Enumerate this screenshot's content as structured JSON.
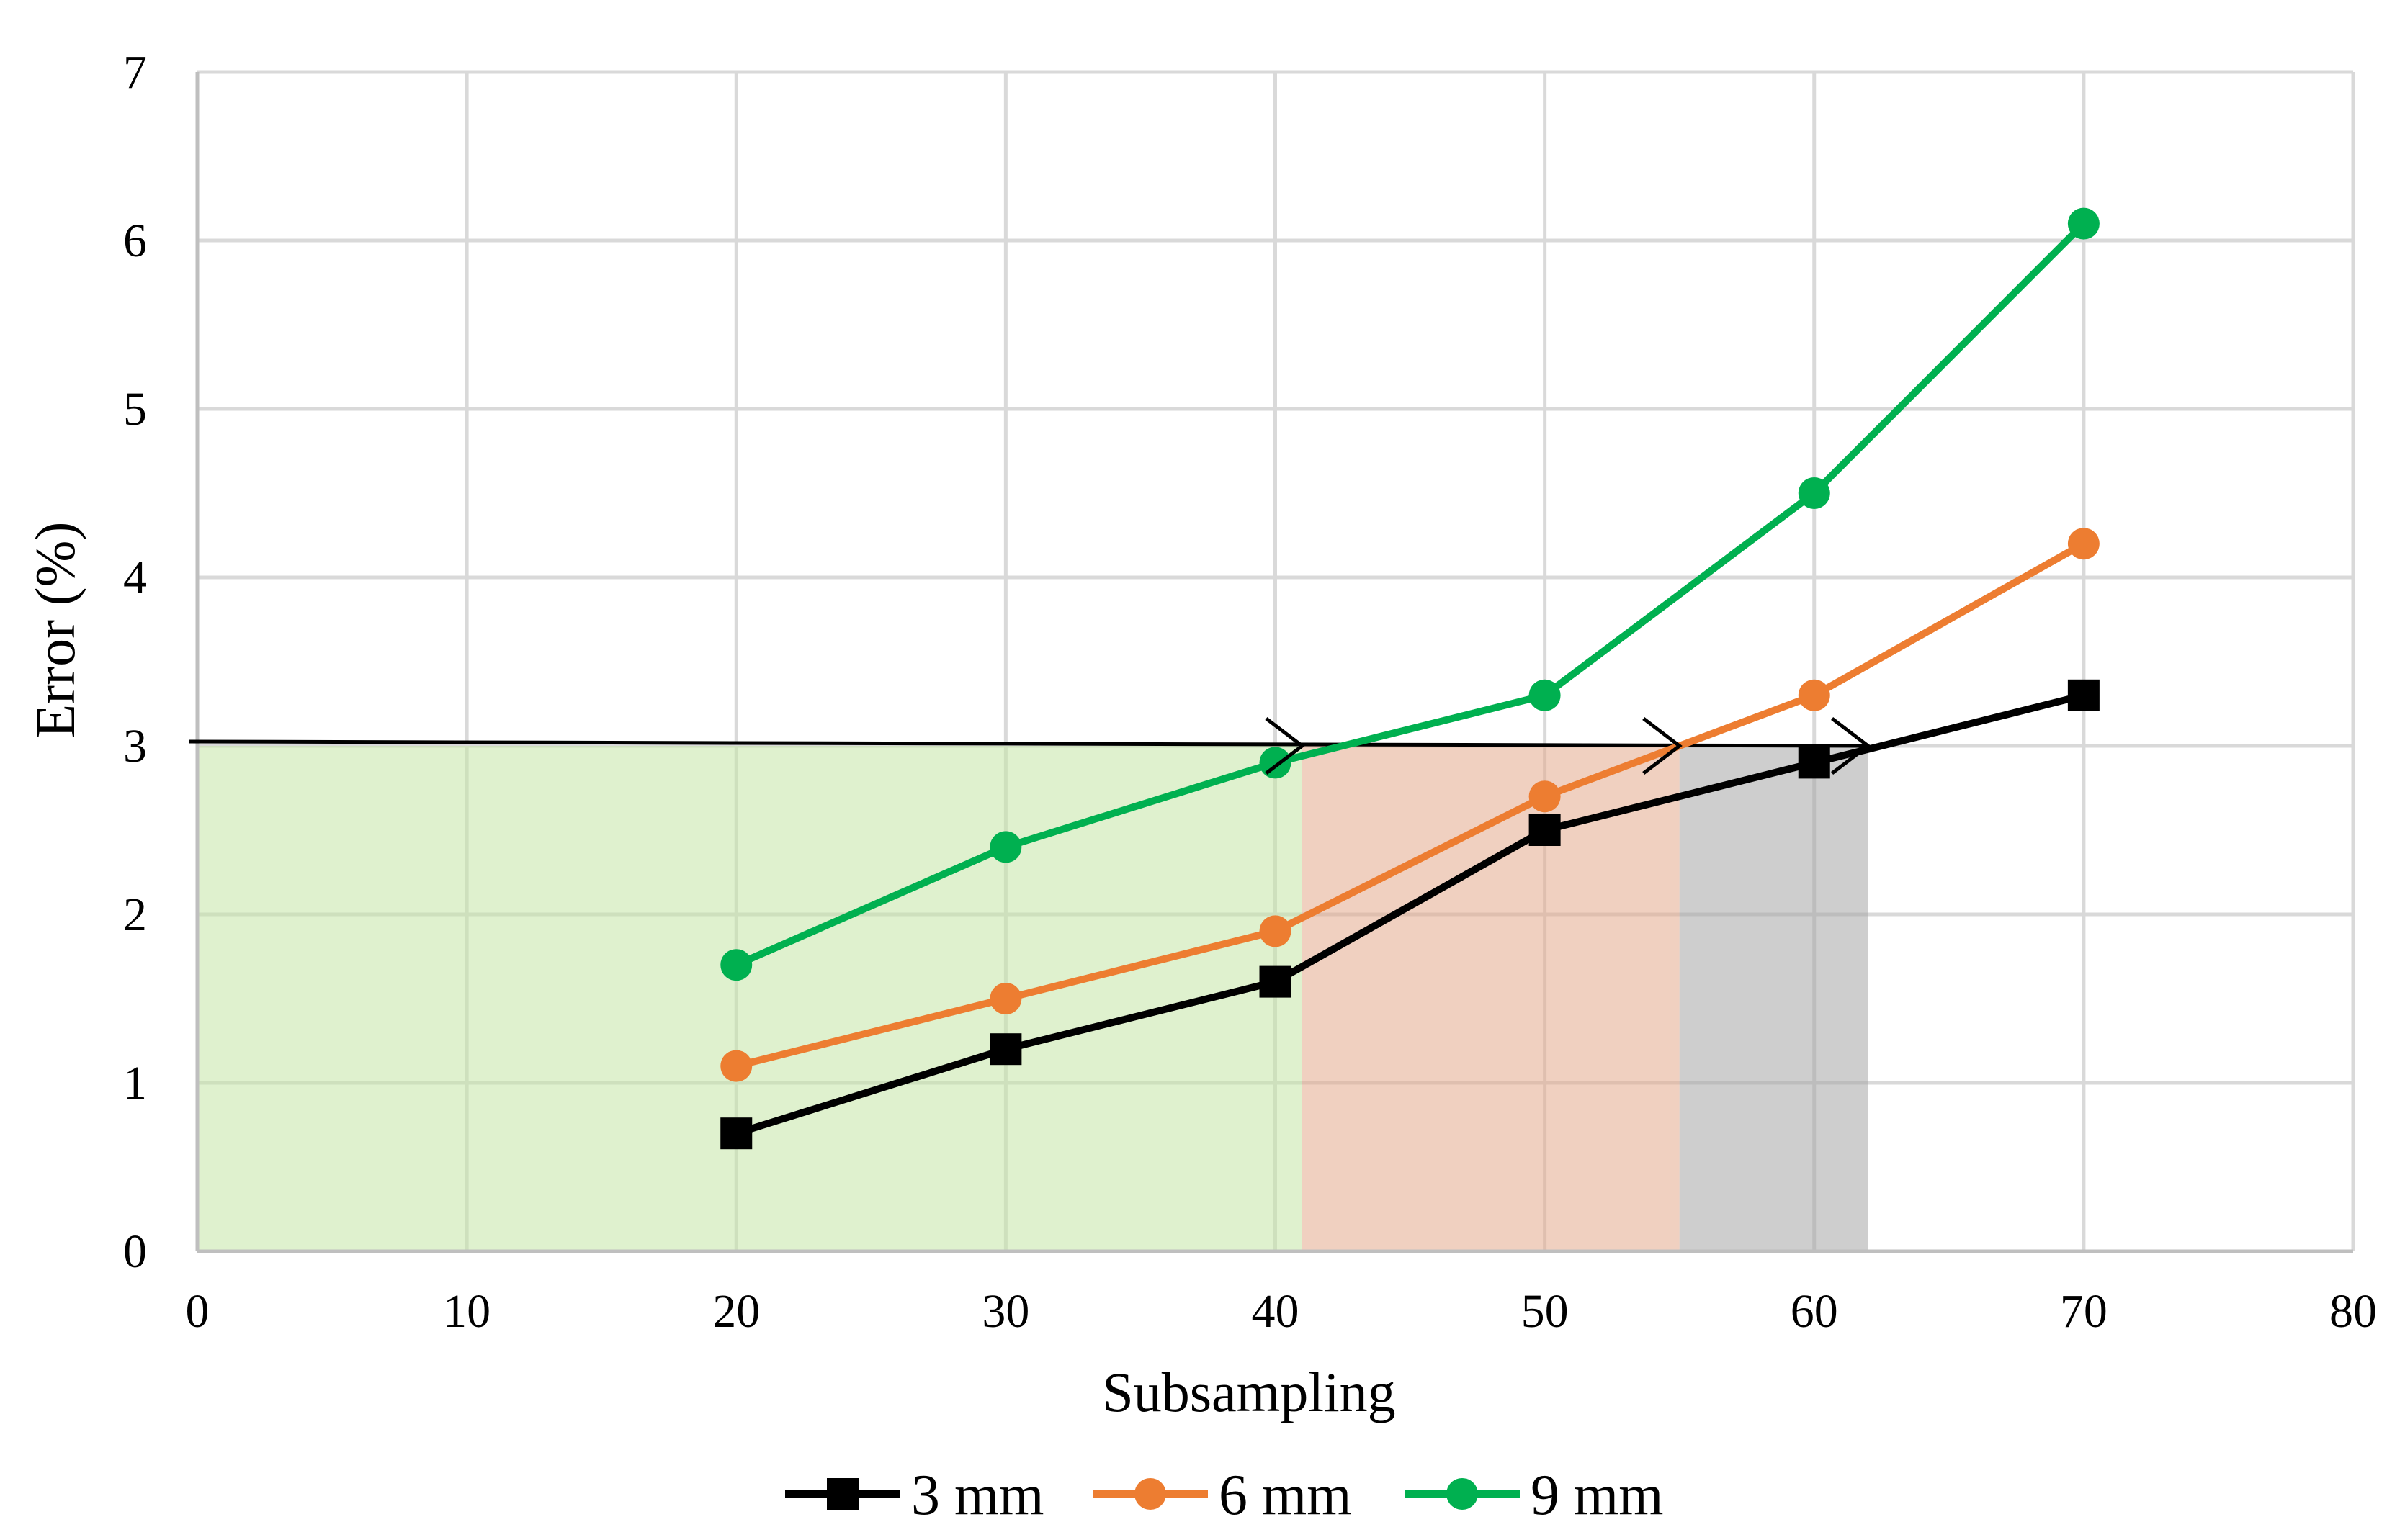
{
  "chart_data": {
    "type": "line",
    "xlabel": "Subsampling",
    "ylabel": "Error (%)",
    "xlim": [
      0,
      80
    ],
    "ylim": [
      0,
      7
    ],
    "x_ticks": [
      0,
      10,
      20,
      30,
      40,
      50,
      60,
      70,
      80
    ],
    "y_ticks": [
      0,
      1,
      2,
      3,
      4,
      5,
      6,
      7
    ],
    "grid": true,
    "legend_position": "bottom",
    "x": [
      20,
      30,
      40,
      50,
      60,
      70
    ],
    "series": [
      {
        "name": "3 mm",
        "marker": "square",
        "color": "#000000",
        "values": [
          0.7,
          1.2,
          1.6,
          2.5,
          2.9,
          3.3
        ]
      },
      {
        "name": "6 mm",
        "marker": "circle",
        "color": "#ED7D31",
        "values": [
          1.1,
          1.5,
          1.9,
          2.7,
          3.3,
          4.2
        ]
      },
      {
        "name": "9 mm",
        "marker": "circle",
        "color": "#00B050",
        "values": [
          1.7,
          2.4,
          2.9,
          3.3,
          4.5,
          6.1
        ]
      }
    ],
    "threshold": {
      "y": 3
    },
    "regions": [
      {
        "x_start": 0,
        "x_end": 41,
        "y_start": 0,
        "y_end": 3,
        "color": "#C5E6A6"
      },
      {
        "x_start": 41,
        "x_end": 55,
        "y_start": 0,
        "y_end": 3,
        "color": "#E4A98C"
      },
      {
        "x_start": 55,
        "x_end": 62,
        "y_start": 0,
        "y_end": 3,
        "color": "#A6A6A6"
      }
    ],
    "arrow_markers_x": [
      41,
      55,
      62
    ]
  }
}
